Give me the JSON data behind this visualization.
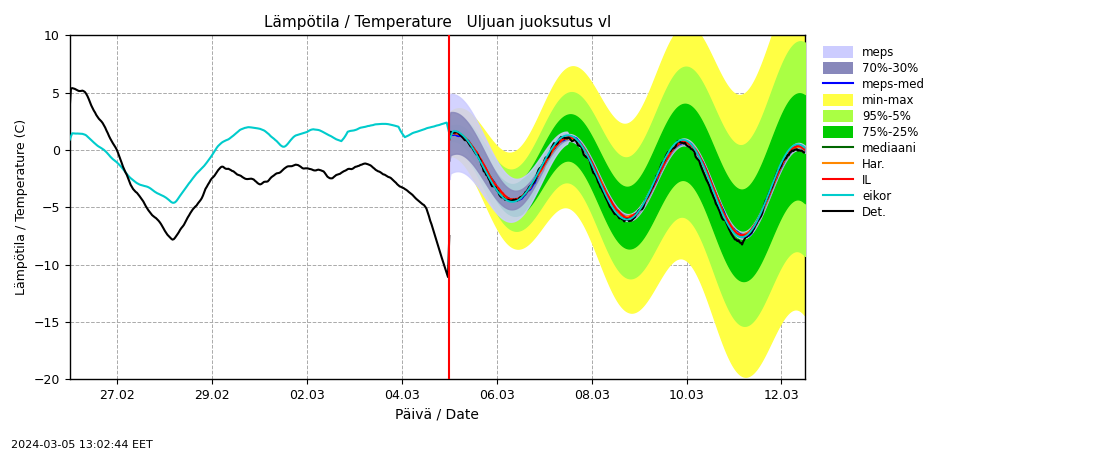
{
  "title": "Lämpötila / Temperature   Uljuan juoksutus vl",
  "xlabel": "Päivä / Date",
  "ylabel": "Lämpötila / Temperature (C)",
  "timestamp": "2024-03-05 13:02:44 EET",
  "ylim": [
    -20,
    10
  ],
  "yticks": [
    -20,
    -15,
    -10,
    -5,
    0,
    5,
    10
  ],
  "colors": {
    "meps_fill": "#ccccff",
    "meps70_fill": "#8888bb",
    "meps_med_line": "#0000ff",
    "min_max_fill": "#ffff44",
    "pct95_5_fill": "#aaff44",
    "pct75_25_fill": "#00cc00",
    "mediaani_line": "#006600",
    "har_line": "#ff8800",
    "il_line": "#ff0000",
    "eikor_line": "#00cccc",
    "det_line": "#000000",
    "vline": "#ff0000",
    "grid": "#aaaaaa"
  },
  "xtick_labels": [
    "27.02",
    "29.02",
    "02.03",
    "04.03",
    "06.03",
    "08.03",
    "10.03",
    "12.03"
  ],
  "xtick_positions": [
    1,
    3,
    5,
    7,
    9,
    11,
    13,
    15
  ]
}
